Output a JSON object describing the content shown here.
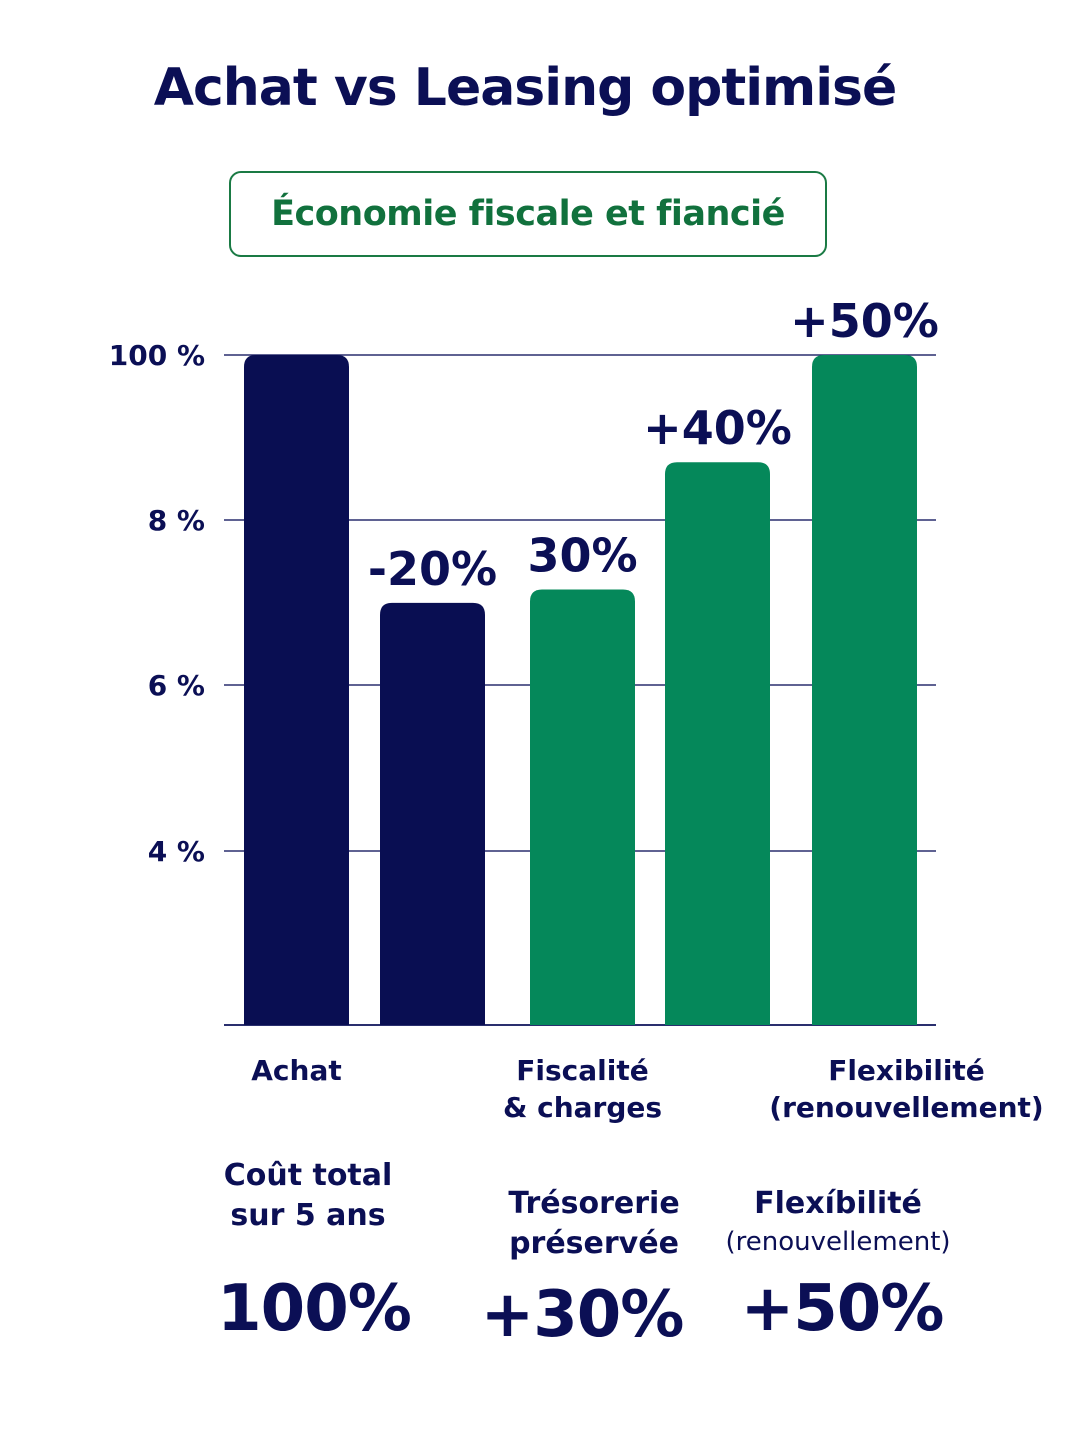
{
  "title": "Achat vs Leasing optimisé",
  "subtitle": "Économie fiscale et fiancié",
  "chart_data": {
    "type": "bar",
    "y_ticks": [
      "100 %",
      "8 %",
      "6 %",
      "4 %"
    ],
    "categories": [
      "Achat",
      "",
      "Fiscalité & charges",
      "",
      "Flexibilité (renouvellement)"
    ],
    "values": [
      100,
      63,
      65,
      84,
      100
    ],
    "value_labels": [
      "",
      "-20%",
      "30%",
      "+40%",
      "+50%"
    ],
    "colors": [
      "#090e52",
      "#090e52",
      "#05885a",
      "#05885a",
      "#05885a"
    ],
    "grid": true,
    "legend": "none"
  },
  "metrics": [
    {
      "label_lines": [
        "Coût total",
        "sur 5 ans"
      ],
      "value": "100%"
    },
    {
      "label_lines": [
        "Trésorerie",
        "préservée"
      ],
      "value": "+30%"
    },
    {
      "label_lines": [
        "Flexíbilité",
        "(renouvellement)"
      ],
      "value": "+50%"
    }
  ]
}
